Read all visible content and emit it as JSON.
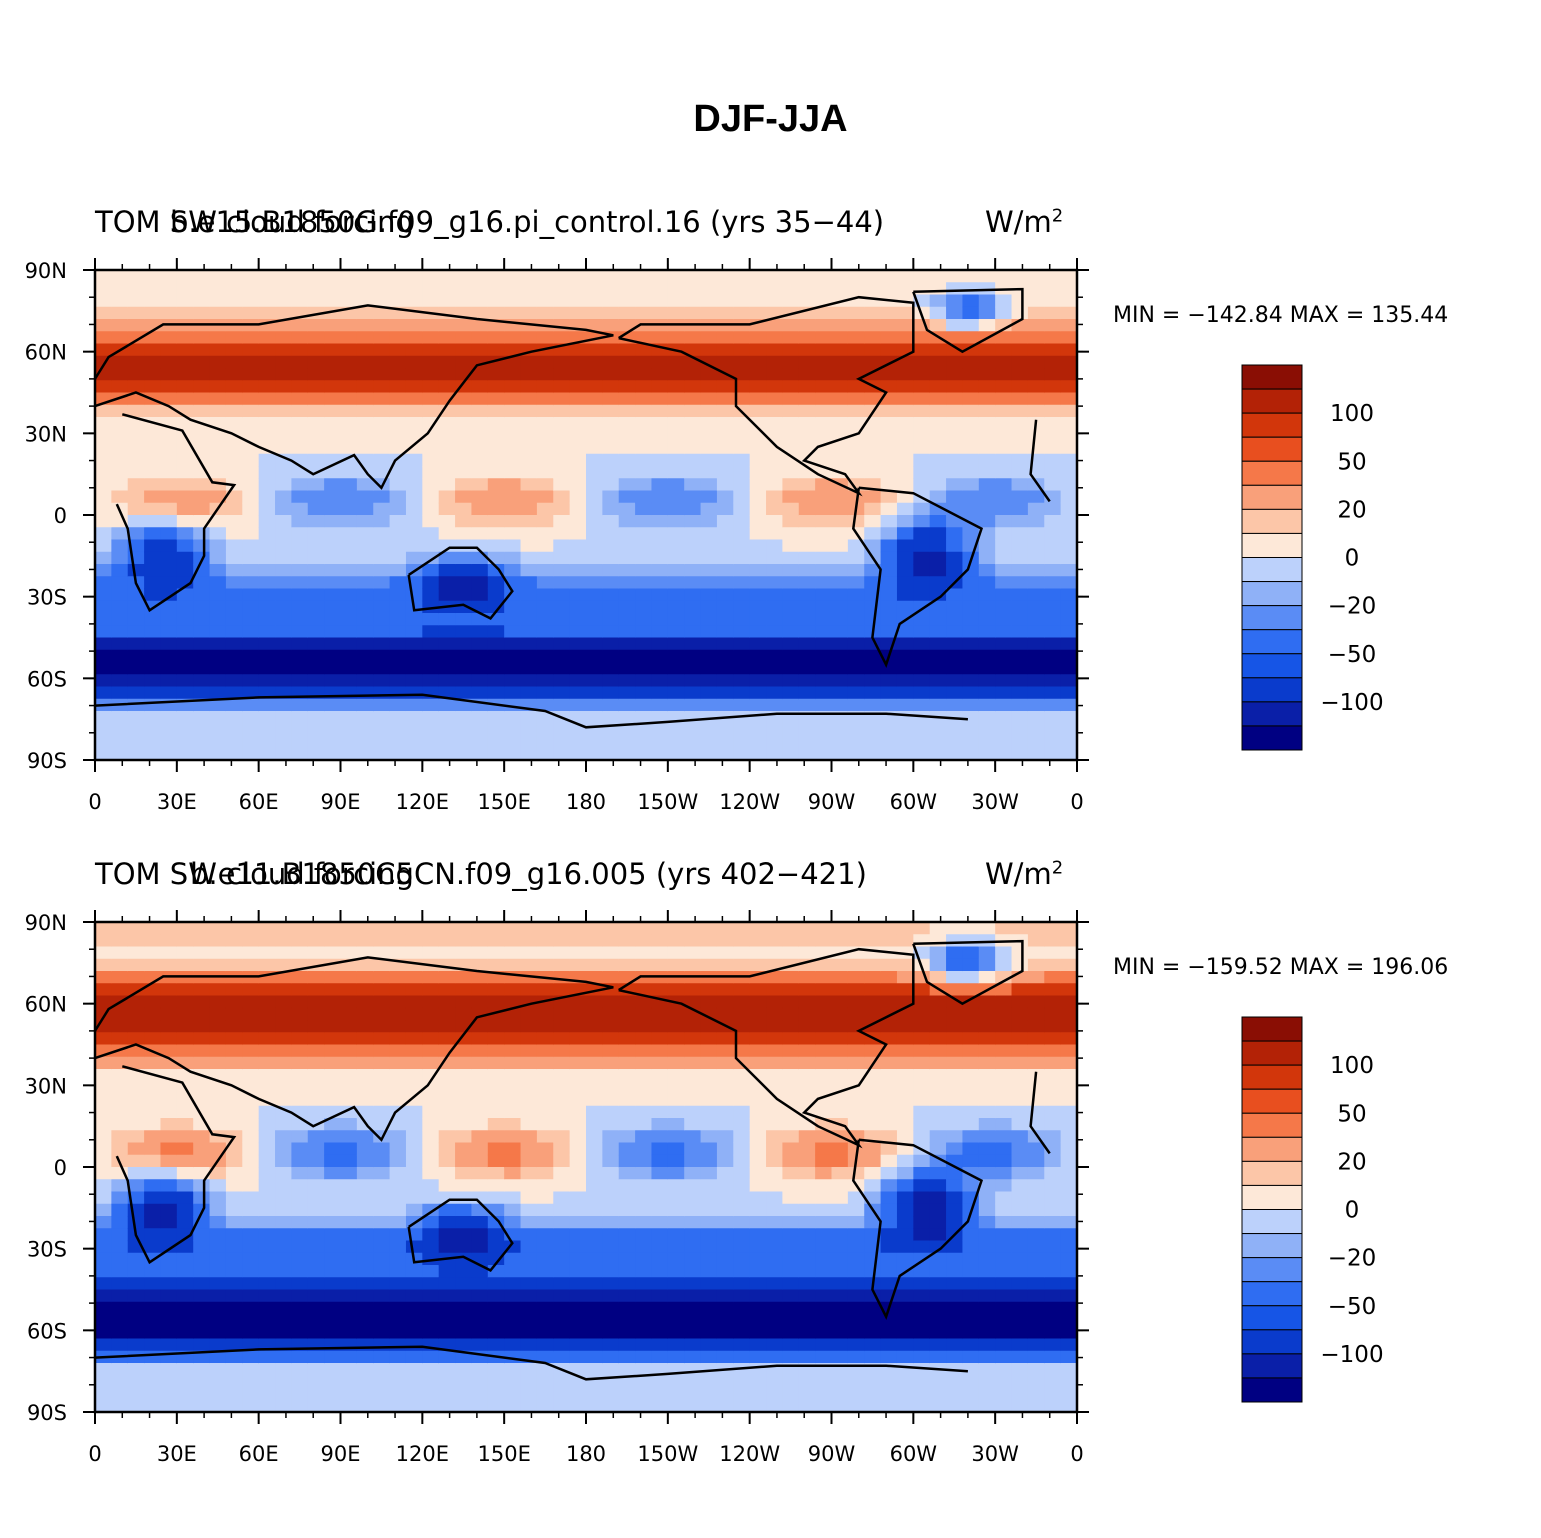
{
  "title": "DJF-JJA",
  "levels": [
    -100,
    -75,
    -50,
    -30,
    -20,
    -10,
    0,
    10,
    20,
    30,
    50,
    75,
    100
  ],
  "colorbar": {
    "colors": [
      "#000082",
      "#0a1fa8",
      "#0a3bcc",
      "#1655e6",
      "#2f6df2",
      "#5a8cf5",
      "#8fb1f7",
      "#bcd1fb",
      "#dbe8fd",
      "#fde8d8",
      "#fcc6a8",
      "#f9a07a",
      "#f57849",
      "#e84f1f",
      "#d2360b",
      "#b32206",
      "#8a0e04"
    ],
    "labels": [
      "100",
      "50",
      "20",
      "0",
      "−20",
      "−50",
      "−100"
    ]
  },
  "axes": {
    "lat_ticks": [
      "90N",
      "60N",
      "30N",
      "0",
      "30S",
      "60S",
      "90S"
    ],
    "lon_ticks": [
      "0",
      "30E",
      "60E",
      "90E",
      "120E",
      "150E",
      "180",
      "150W",
      "120W",
      "90W",
      "60W",
      "30W",
      "0"
    ]
  },
  "panels": [
    {
      "title_left": "TOM SW cloud forcing",
      "title_center": "b.e15.B1850G.f09_g16.pi_control.16 (yrs 35−44)",
      "title_right": "W/m",
      "title_right_sup": "2",
      "min_max": "MIN = −142.84  MAX = 135.44"
    },
    {
      "title_left": "TOM SW cloud forcing",
      "title_center": "b.e11.B1850C5CN.f09_g16.005 (yrs 402−421)",
      "title_right": "W/m",
      "title_right_sup": "2",
      "min_max": "MIN = −159.52  MAX = 196.06"
    }
  ]
}
